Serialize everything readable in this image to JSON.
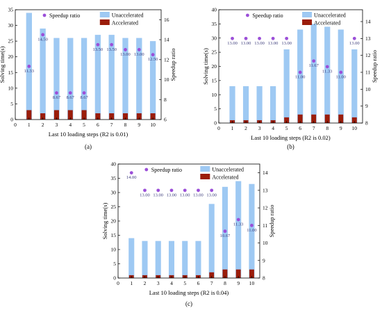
{
  "figure": {
    "panel_labels": [
      "(a)",
      "(b)",
      "(c)"
    ]
  },
  "colors": {
    "unaccelerated": "#9ec9f3",
    "accelerated": "#9b1d0a",
    "speedup": "#9b4fd8",
    "speedup_label": "#3a3a7a"
  },
  "chart_data": [
    {
      "type": "bar",
      "panel": "(a)",
      "xlabel": "Last 10 loading steps (R2 is 0.01)",
      "ylabel": "Solving time(s)",
      "y2label": "Speedup ratio",
      "categories": [
        "1",
        "2",
        "3",
        "4",
        "5",
        "6",
        "7",
        "8",
        "9",
        "10"
      ],
      "x_ticks": [
        "0",
        "1",
        "2",
        "3",
        "4",
        "5",
        "6",
        "7",
        "8",
        "9",
        "10"
      ],
      "ylim": [
        0,
        35
      ],
      "y_ticks": [
        "0",
        "5",
        "10",
        "15",
        "20",
        "25",
        "30",
        "35"
      ],
      "y2lim": [
        6,
        17
      ],
      "y2_ticks": [
        "6",
        "8",
        "10",
        "12",
        "14",
        "16"
      ],
      "series": [
        {
          "name": "Unaccelerated",
          "values": [
            34,
            29,
            26,
            26,
            26,
            27,
            27,
            26,
            26,
            25
          ]
        },
        {
          "name": "Accelerated",
          "values": [
            3,
            2,
            3,
            3,
            3,
            2,
            2,
            2,
            2,
            2
          ]
        }
      ],
      "speedup": {
        "name": "Speedup ratio",
        "values": [
          11.33,
          14.5,
          8.67,
          8.67,
          8.67,
          13.5,
          13.5,
          13.0,
          13.0,
          12.5
        ],
        "labels": [
          "11.33",
          "14.50",
          "8.67",
          "8.67",
          "8.67",
          "13.50",
          "13.50",
          "13.00",
          "13.00",
          "12.50"
        ]
      },
      "legend": "top-right"
    },
    {
      "type": "bar",
      "panel": "(b)",
      "xlabel": "Last 10 loading steps (R2 is 0.02)",
      "ylabel": "Solving time(s)",
      "y2label": "Speedup ratio",
      "categories": [
        "1",
        "2",
        "3",
        "4",
        "5",
        "6",
        "7",
        "8",
        "9",
        "10"
      ],
      "x_ticks": [
        "0",
        "1",
        "2",
        "3",
        "4",
        "5",
        "6",
        "7",
        "8",
        "9",
        "10"
      ],
      "ylim": [
        0,
        40
      ],
      "y_ticks": [
        "0",
        "5",
        "10",
        "15",
        "20",
        "25",
        "30",
        "35",
        "40"
      ],
      "y2lim": [
        8,
        14.7
      ],
      "y2_ticks": [
        "8",
        "9",
        "10",
        "11",
        "12",
        "13",
        "14"
      ],
      "series": [
        {
          "name": "Unaccelerated",
          "values": [
            13,
            13,
            13,
            13,
            26,
            33,
            35,
            34,
            33,
            26
          ]
        },
        {
          "name": "Accelerated",
          "values": [
            1,
            1,
            1,
            1,
            2,
            3,
            3,
            3,
            3,
            2
          ]
        }
      ],
      "speedup": {
        "name": "Speedup ratio",
        "values": [
          13.0,
          13.0,
          13.0,
          13.0,
          13.0,
          11.0,
          11.67,
          11.33,
          11.0,
          13.0
        ],
        "labels": [
          "13.00",
          "13.00",
          "13.00",
          "13.00",
          "13.00",
          "11.00",
          "11.67",
          "11.33",
          "11.00",
          "13.00"
        ]
      },
      "legend": "top-right"
    },
    {
      "type": "bar",
      "panel": "(c)",
      "xlabel": "Last 10 loading steps (R2 is 0.04)",
      "ylabel": "Solving time(s)",
      "y2label": "Speedup ratio",
      "categories": [
        "1",
        "2",
        "3",
        "4",
        "5",
        "6",
        "7",
        "8",
        "9",
        "10"
      ],
      "x_ticks": [
        "0",
        "1",
        "2",
        "3",
        "4",
        "5",
        "6",
        "7",
        "8",
        "9",
        "10"
      ],
      "ylim": [
        0,
        40
      ],
      "y_ticks": [
        "0",
        "5",
        "10",
        "15",
        "20",
        "25",
        "30",
        "35",
        "40"
      ],
      "y2lim": [
        8,
        14.5
      ],
      "y2_ticks": [
        "8",
        "9",
        "10",
        "11",
        "12",
        "13",
        "14"
      ],
      "series": [
        {
          "name": "Unaccelerated",
          "values": [
            14,
            13,
            13,
            13,
            13,
            13,
            26,
            32,
            34,
            33
          ]
        },
        {
          "name": "Accelerated",
          "values": [
            1,
            1,
            1,
            1,
            1,
            1,
            2,
            3,
            3,
            3
          ]
        }
      ],
      "speedup": {
        "name": "Speedup ratio",
        "values": [
          14.0,
          13.0,
          13.0,
          13.0,
          13.0,
          13.0,
          13.0,
          10.67,
          11.33,
          11.0
        ],
        "labels": [
          "14.00",
          "13.00",
          "13.00",
          "13.00",
          "13.00",
          "13.00",
          "13.00",
          "10.67",
          "11.33",
          "11.00"
        ]
      },
      "legend": "top-right"
    }
  ]
}
